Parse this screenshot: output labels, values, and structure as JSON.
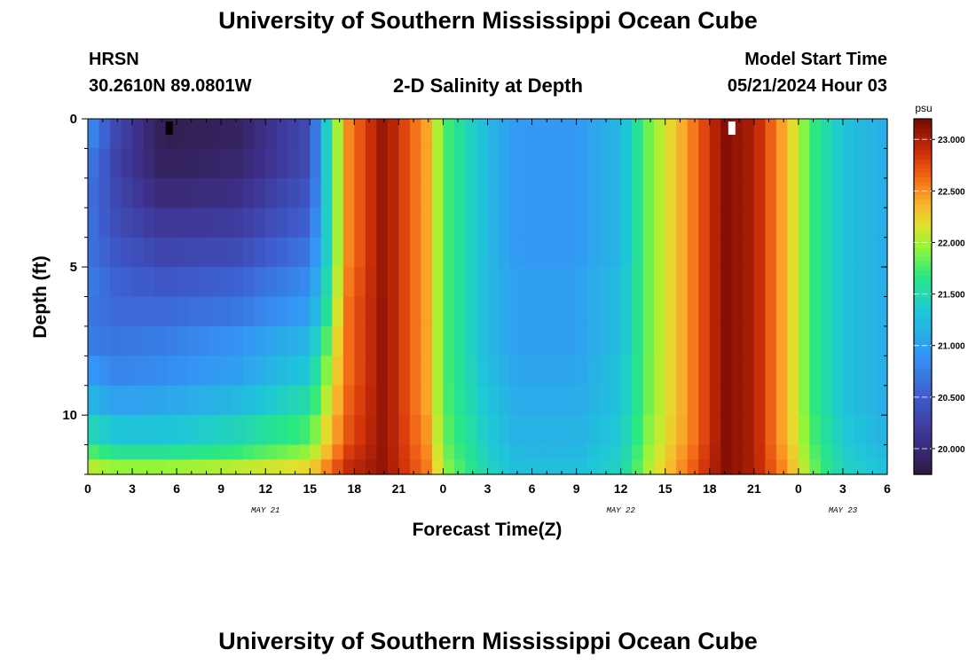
{
  "page": {
    "title": "University of Southern Mississippi Ocean Cube",
    "station": "HRSN",
    "coords": "30.2610N  89.0801W",
    "subtitle": "2-D Salinity at Depth",
    "start_label": "Model Start Time",
    "start_value": "05/21/2024 Hour 03",
    "footer_title": "University of Southern Mississippi Ocean Cube"
  },
  "chart_data": {
    "type": "heatmap",
    "title": "2-D Salinity at Depth",
    "xlabel": "Forecast Time(Z)",
    "ylabel": "Depth (ft)",
    "x_ticks": [
      "0",
      "3",
      "6",
      "9",
      "12",
      "15",
      "18",
      "21",
      "0",
      "3",
      "6",
      "9",
      "12",
      "15",
      "18",
      "21",
      "0",
      "3",
      "6"
    ],
    "x_range_hours": [
      0,
      54
    ],
    "date_labels": [
      {
        "text": "MAY 21",
        "hour": 12
      },
      {
        "text": "MAY 22",
        "hour": 36
      },
      {
        "text": "MAY 23",
        "hour": 51
      }
    ],
    "y_ticks": [
      0,
      5,
      10
    ],
    "ylim": [
      0,
      12
    ],
    "y_reversed": true,
    "colorbar": {
      "unit": "psu",
      "min": 19.75,
      "max": 23.2,
      "ticks": [
        "20.000",
        "20.500",
        "21.000",
        "21.500",
        "22.000",
        "22.500",
        "23.000"
      ],
      "tick_values": [
        20.0,
        20.5,
        21.0,
        21.5,
        22.0,
        22.5,
        23.0
      ]
    },
    "depth_levels_ft": [
      0,
      1,
      2,
      3,
      4,
      5,
      6,
      7,
      8,
      9,
      10,
      11,
      12
    ],
    "salinity_by_depth": [
      {
        "depth_range": "0-1",
        "hours": [
          0,
          2,
          5,
          10,
          15,
          16,
          17.5,
          20,
          23,
          24,
          27,
          29,
          33,
          36,
          38,
          41,
          43,
          45,
          47,
          49,
          51,
          54
        ],
        "psu": [
          20.9,
          20.3,
          19.85,
          19.9,
          20.35,
          21.3,
          22.5,
          23.1,
          22.4,
          21.8,
          21.2,
          20.95,
          20.95,
          21.2,
          21.9,
          22.6,
          23.15,
          23.0,
          22.4,
          21.7,
          21.3,
          21.1
        ]
      },
      {
        "depth_range": "1-2",
        "hours": [
          0,
          2,
          5,
          10,
          15,
          16,
          17.5,
          20,
          23,
          24,
          27,
          29,
          33,
          36,
          38,
          41,
          43,
          45,
          47,
          49,
          51,
          54
        ],
        "psu": [
          20.75,
          20.25,
          19.9,
          19.95,
          20.35,
          21.3,
          22.5,
          23.1,
          22.4,
          21.8,
          21.2,
          20.95,
          20.95,
          21.2,
          21.9,
          22.6,
          23.15,
          23.0,
          22.4,
          21.7,
          21.3,
          21.1
        ]
      },
      {
        "depth_range": "2-3",
        "hours": [
          0,
          2,
          5,
          10,
          15,
          16,
          17.5,
          20,
          23,
          24,
          27,
          29,
          33,
          36,
          38,
          41,
          43,
          45,
          47,
          49,
          51,
          54
        ],
        "psu": [
          20.7,
          20.3,
          20.0,
          20.05,
          20.45,
          21.3,
          22.5,
          23.1,
          22.4,
          21.8,
          21.2,
          20.95,
          20.95,
          21.2,
          21.9,
          22.6,
          23.15,
          23.0,
          22.4,
          21.7,
          21.3,
          21.1
        ]
      },
      {
        "depth_range": "3-4",
        "hours": [
          0,
          2,
          5,
          10,
          15,
          16,
          17.5,
          20,
          23,
          24,
          27,
          29,
          33,
          36,
          38,
          41,
          43,
          45,
          47,
          49,
          51,
          54
        ],
        "psu": [
          20.7,
          20.35,
          20.15,
          20.2,
          20.55,
          21.3,
          22.5,
          23.1,
          22.4,
          21.8,
          21.2,
          20.95,
          20.95,
          21.2,
          21.9,
          22.6,
          23.15,
          23.0,
          22.4,
          21.7,
          21.3,
          21.1
        ]
      },
      {
        "depth_range": "4-5",
        "hours": [
          0,
          2,
          5,
          10,
          15,
          16,
          17.5,
          20,
          23,
          24,
          27,
          29,
          33,
          36,
          38,
          41,
          43,
          45,
          47,
          49,
          51,
          54
        ],
        "psu": [
          20.7,
          20.45,
          20.3,
          20.35,
          20.7,
          21.3,
          22.5,
          23.1,
          22.4,
          21.8,
          21.2,
          20.95,
          20.95,
          21.2,
          21.9,
          22.6,
          23.15,
          23.0,
          22.4,
          21.7,
          21.3,
          21.1
        ]
      },
      {
        "depth_range": "5-6",
        "hours": [
          0,
          2,
          5,
          10,
          15,
          16,
          17.5,
          20,
          23,
          24,
          27,
          29,
          33,
          36,
          38,
          41,
          43,
          45,
          47,
          49,
          51,
          54
        ],
        "psu": [
          20.75,
          20.55,
          20.45,
          20.55,
          20.85,
          21.4,
          22.55,
          23.1,
          22.4,
          21.8,
          21.2,
          21.0,
          21.0,
          21.25,
          21.9,
          22.6,
          23.15,
          23.0,
          22.4,
          21.7,
          21.3,
          21.1
        ]
      },
      {
        "depth_range": "6-7",
        "hours": [
          0,
          2,
          5,
          10,
          15,
          16,
          17.5,
          20,
          23,
          24,
          27,
          29,
          33,
          36,
          38,
          41,
          43,
          45,
          47,
          49,
          51,
          54
        ],
        "psu": [
          20.7,
          20.6,
          20.6,
          20.7,
          21.0,
          21.5,
          22.6,
          23.1,
          22.4,
          21.8,
          21.2,
          21.0,
          21.0,
          21.25,
          21.9,
          22.6,
          23.15,
          23.0,
          22.4,
          21.7,
          21.3,
          21.1
        ]
      },
      {
        "depth_range": "7-8",
        "hours": [
          0,
          2,
          5,
          10,
          15,
          16,
          17.5,
          20,
          23,
          24,
          27,
          29,
          33,
          36,
          38,
          41,
          43,
          45,
          47,
          49,
          51,
          54
        ],
        "psu": [
          20.75,
          20.7,
          20.75,
          20.9,
          21.2,
          21.7,
          22.6,
          23.1,
          22.4,
          21.8,
          21.2,
          21.0,
          21.0,
          21.25,
          21.9,
          22.6,
          23.15,
          23.0,
          22.4,
          21.7,
          21.3,
          21.1
        ]
      },
      {
        "depth_range": "8-9",
        "hours": [
          0,
          2,
          5,
          10,
          15,
          16,
          17.5,
          20,
          23,
          24,
          27,
          29,
          33,
          36,
          38,
          41,
          43,
          45,
          47,
          49,
          51,
          54
        ],
        "psu": [
          20.95,
          20.8,
          20.85,
          21.0,
          21.35,
          21.85,
          22.6,
          23.1,
          22.4,
          21.8,
          21.25,
          21.05,
          21.05,
          21.3,
          21.9,
          22.6,
          23.15,
          23.0,
          22.4,
          21.7,
          21.3,
          21.1
        ]
      },
      {
        "depth_range": "9-10",
        "hours": [
          0,
          2,
          5,
          10,
          15,
          16,
          17.5,
          20,
          23,
          24,
          27,
          29,
          33,
          36,
          38,
          41,
          43,
          45,
          47,
          49,
          51,
          54
        ],
        "psu": [
          21.2,
          21.0,
          21.05,
          21.2,
          21.55,
          22.0,
          22.65,
          23.1,
          22.4,
          21.8,
          21.3,
          21.1,
          21.1,
          21.3,
          21.9,
          22.6,
          23.15,
          23.0,
          22.4,
          21.7,
          21.3,
          21.1
        ]
      },
      {
        "depth_range": "10-11",
        "hours": [
          0,
          2,
          5,
          10,
          15,
          16,
          17.5,
          20,
          23,
          24,
          27,
          29,
          33,
          36,
          38,
          41,
          43,
          45,
          47,
          49,
          51,
          54
        ],
        "psu": [
          21.5,
          21.3,
          21.3,
          21.45,
          21.75,
          22.15,
          22.7,
          23.1,
          22.45,
          21.85,
          21.35,
          21.15,
          21.15,
          21.35,
          21.95,
          22.6,
          23.15,
          23.0,
          22.4,
          21.75,
          21.35,
          21.15
        ]
      },
      {
        "depth_range": "11-11.5",
        "hours": [
          0,
          2,
          5,
          10,
          15,
          16,
          17.5,
          20,
          23,
          24,
          27,
          29,
          33,
          36,
          38,
          41,
          43,
          45,
          47,
          49,
          51,
          54
        ],
        "psu": [
          21.8,
          21.6,
          21.6,
          21.7,
          21.95,
          22.3,
          22.8,
          23.1,
          22.5,
          21.9,
          21.4,
          21.2,
          21.2,
          21.4,
          22.0,
          22.65,
          23.15,
          23.0,
          22.45,
          21.8,
          21.4,
          21.2
        ]
      },
      {
        "depth_range": "11.5-12",
        "hours": [
          0,
          2,
          5,
          10,
          15,
          16,
          17.5,
          20,
          23,
          24,
          27,
          29,
          33,
          36,
          38,
          41,
          43,
          45,
          47,
          49,
          51,
          54
        ],
        "psu": [
          22.05,
          21.95,
          21.95,
          22.05,
          22.2,
          22.5,
          22.9,
          23.1,
          22.55,
          21.95,
          21.45,
          21.25,
          21.25,
          21.45,
          22.05,
          22.7,
          23.15,
          23.0,
          22.5,
          21.85,
          21.45,
          21.25
        ]
      }
    ],
    "markers": [
      {
        "color": "#000000",
        "hour": 5.5,
        "depth": 0.3
      },
      {
        "color": "#ffffff",
        "hour": 43.5,
        "depth": 0.3
      }
    ]
  }
}
